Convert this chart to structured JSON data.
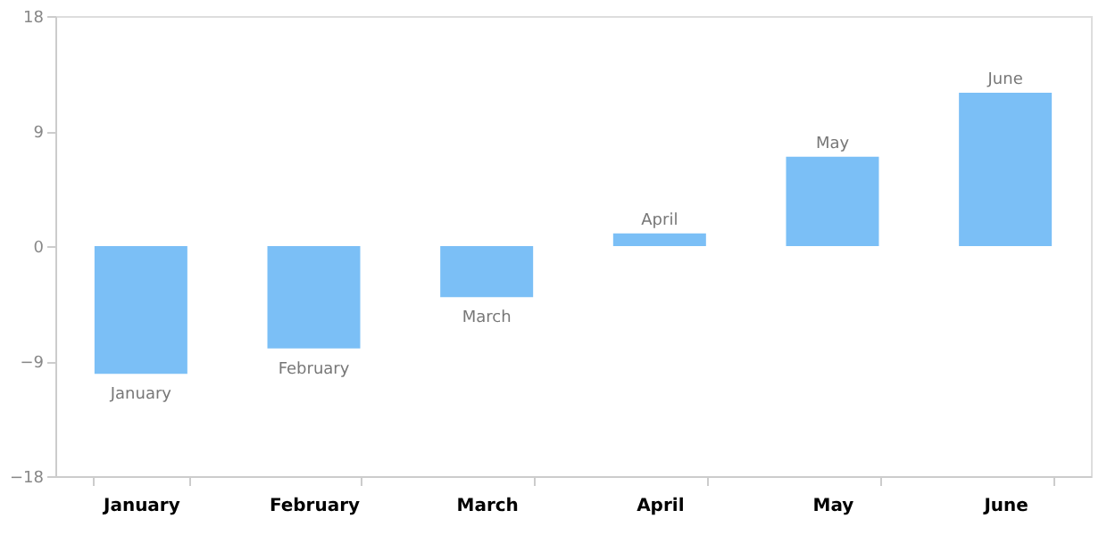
{
  "chart_data": {
    "type": "bar",
    "categories": [
      "January",
      "February",
      "March",
      "April",
      "May",
      "June"
    ],
    "values": [
      -10,
      -8,
      -4,
      1,
      7,
      12
    ],
    "color": "#7bbff6",
    "ylim": [
      -18,
      18
    ],
    "yticks": [
      -18,
      -9,
      0,
      9,
      18
    ],
    "grid": false,
    "annotations": [
      {
        "text": "January",
        "x": "January",
        "y": -10
      },
      {
        "text": "February",
        "x": "February",
        "y": -8
      },
      {
        "text": "March",
        "x": "March",
        "y": -4
      },
      {
        "text": "April",
        "x": "April",
        "y": 1
      },
      {
        "text": "May",
        "x": "May",
        "y": 7
      },
      {
        "text": "June",
        "x": "June",
        "y": 12
      }
    ]
  }
}
